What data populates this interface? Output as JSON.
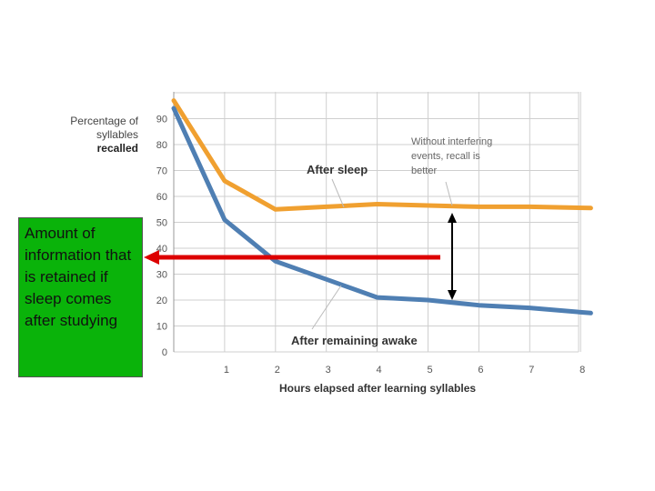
{
  "chart_data": {
    "type": "line",
    "ylabel": [
      "Percentage of",
      "syllables",
      "recalled"
    ],
    "xlabel": "Hours elapsed after learning syllables",
    "yticks": [
      "0",
      "10",
      "20",
      "30",
      "40",
      "50",
      "60",
      "70",
      "80",
      "90"
    ],
    "xticks": [
      "1",
      "2",
      "3",
      "4",
      "5",
      "6",
      "7",
      "8"
    ],
    "ylim": [
      0,
      100
    ],
    "xlim": [
      0,
      8.2
    ],
    "grid": true,
    "series": [
      {
        "name": "After sleep",
        "color": "#f0a030",
        "x": [
          0,
          1,
          2,
          3,
          4,
          5,
          6,
          7,
          8.2
        ],
        "values": [
          97,
          66,
          55,
          56,
          57,
          56.5,
          56,
          56,
          55.5
        ]
      },
      {
        "name": "After remaining awake",
        "color": "#4f7fb3",
        "x": [
          0,
          1,
          2,
          3,
          4,
          5,
          6,
          7,
          8.2
        ],
        "values": [
          94,
          51,
          35,
          28,
          21,
          20,
          18,
          17,
          15
        ]
      }
    ],
    "annotations": {
      "after_sleep": "After sleep",
      "after_awake": "After remaining awake",
      "note_lines": [
        "Without interfering",
        "events, recall is",
        "better"
      ]
    }
  },
  "callout": {
    "text": "Amount of information that is retained if sleep comes after studying",
    "color": "#0ab30a",
    "arrow_color": "#dd0000"
  }
}
